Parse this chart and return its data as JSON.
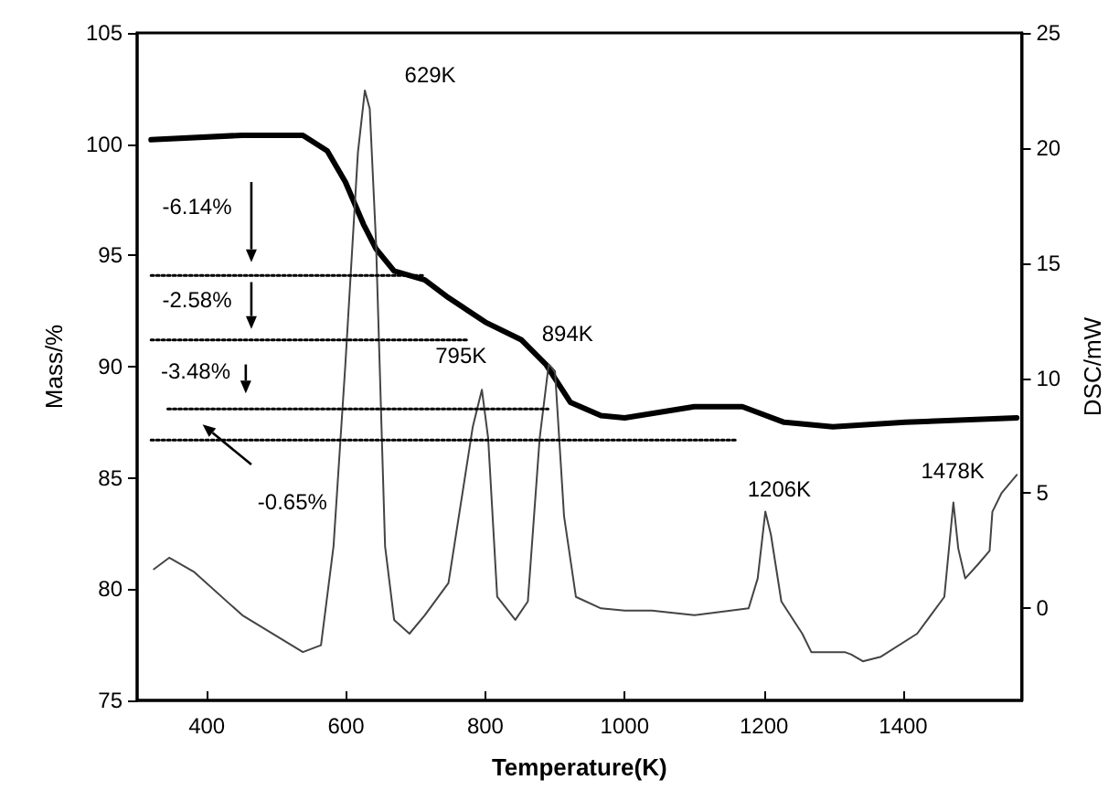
{
  "chart_data": {
    "type": "line",
    "xlabel": "Temperature(K)",
    "ylabel": "Mass/%",
    "y2label": "DSC/mW",
    "xlim": [
      300,
      1570
    ],
    "xticks": [
      400,
      600,
      800,
      1000,
      1200,
      1400
    ],
    "ylim": [
      75,
      105
    ],
    "yticks": [
      75,
      80,
      85,
      90,
      95,
      100,
      105
    ],
    "y2lim": [
      -4,
      25
    ],
    "y2ticks": [
      0,
      5,
      10,
      15,
      20,
      25
    ],
    "grid": false,
    "marker": "none",
    "line_style": "solid",
    "series": [
      {
        "color": "#000000",
        "x": [
          320,
          451,
          538,
          573,
          599,
          625,
          643,
          669,
          713,
          747,
          800,
          852,
          887,
          922,
          966,
          1000,
          1100,
          1169,
          1229,
          1299,
          1403,
          1563
        ],
        "values": [
          100.2,
          100.4,
          100.4,
          99.7,
          98.3,
          96.4,
          95.3,
          94.3,
          93.9,
          93.1,
          92.0,
          91.2,
          90.1,
          88.4,
          87.8,
          87.7,
          88.2,
          88.2,
          87.5,
          87.3,
          87.5,
          87.7
        ]
      },
      {
        "color": "#444444",
        "axis": "y2",
        "x": [
          324,
          346,
          381,
          451,
          538,
          564,
          582,
          599,
          617,
          627,
          634,
          643,
          656,
          669,
          691,
          713,
          747,
          782,
          795,
          804,
          817,
          843,
          861,
          878,
          891,
          900,
          913,
          930,
          966,
          1000,
          1039,
          1100,
          1178,
          1191,
          1202,
          1210,
          1225,
          1255,
          1268,
          1316,
          1325,
          1342,
          1368,
          1420,
          1459,
          1472,
          1479,
          1489,
          1507,
          1524,
          1528,
          1541,
          1563
        ],
        "values": [
          1.7,
          2.2,
          1.6,
          -0.3,
          -1.9,
          -1.6,
          2.7,
          10.6,
          19.8,
          22.5,
          21.7,
          15.9,
          2.7,
          -0.5,
          -1.1,
          -0.3,
          1.1,
          7.9,
          9.5,
          7.4,
          0.5,
          -0.5,
          0.3,
          7.4,
          10.6,
          10.3,
          4.0,
          0.5,
          0.0,
          -0.1,
          -0.1,
          -0.3,
          0.0,
          1.3,
          4.2,
          3.2,
          0.3,
          -1.1,
          -1.9,
          -1.9,
          -2.0,
          -2.3,
          -2.1,
          -1.1,
          0.5,
          4.6,
          2.6,
          1.3,
          1.9,
          2.5,
          4.2,
          5.0,
          5.8
        ]
      },
      {
        "color": "#000000",
        "line_style": "dotted",
        "x": [
          320,
          710
        ],
        "values": [
          94.1,
          94.1
        ]
      },
      {
        "color": "#000000",
        "line_style": "dotted",
        "x": [
          320,
          773
        ],
        "values": [
          91.2,
          91.2
        ]
      },
      {
        "color": "#000000",
        "line_style": "dotted",
        "x": [
          344,
          890
        ],
        "values": [
          88.1,
          88.1
        ]
      },
      {
        "color": "#000000",
        "line_style": "dotted",
        "x": [
          320,
          1162
        ],
        "values": [
          86.7,
          86.7
        ]
      }
    ],
    "annotations": [
      "629K",
      "795K",
      "894K",
      "1206K",
      "1478K",
      "-6.14%",
      "-2.58%",
      "-3.48%",
      "-0.65%"
    ]
  }
}
